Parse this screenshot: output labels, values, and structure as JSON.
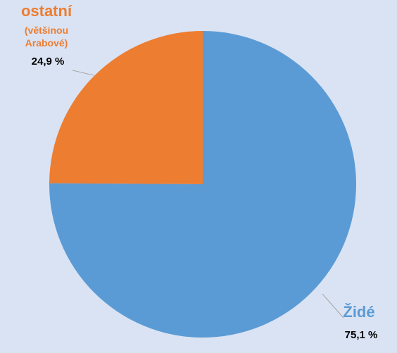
{
  "chart_data": {
    "type": "pie",
    "categories": [
      "Židé",
      "ostatní"
    ],
    "values": [
      75.1,
      24.9
    ],
    "value_labels": [
      "75,1 %",
      "24,9 %"
    ],
    "colors": [
      "#5b9bd5",
      "#ed7d31"
    ],
    "annotation": "(většinou Arabové)"
  }
}
